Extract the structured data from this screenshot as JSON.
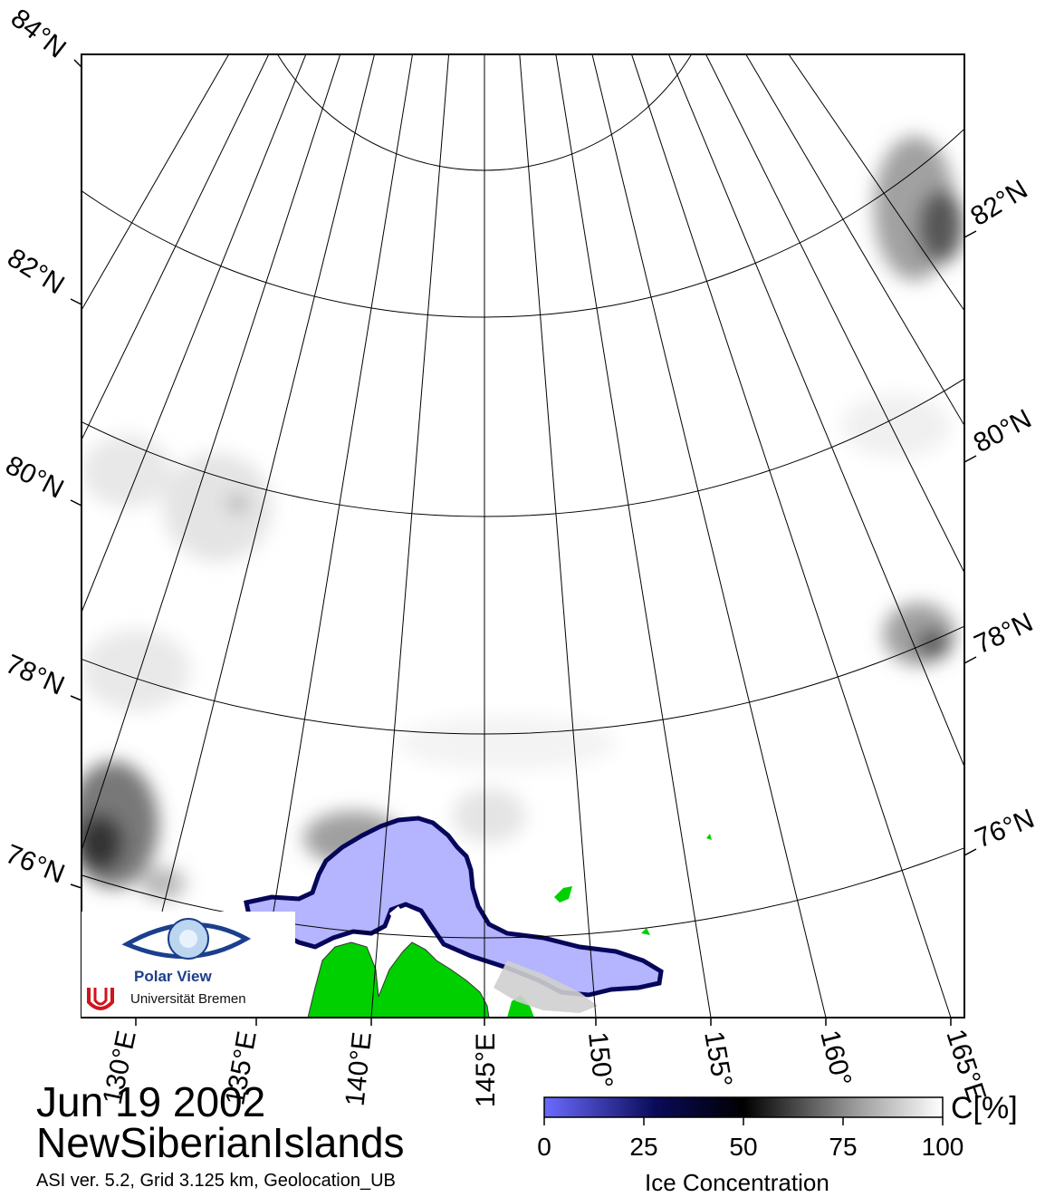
{
  "map": {
    "lat_labels_left": [
      "84°N",
      "82°N",
      "80°N",
      "78°N",
      "76°N"
    ],
    "lat_labels_right": [
      "82°N",
      "80°N",
      "78°N",
      "76°N"
    ],
    "lon_labels": [
      "130°E",
      "135°E",
      "140°E",
      "145°E",
      "150°",
      "155°",
      "160°",
      "165°E"
    ],
    "land_color": "#00d000",
    "fast_ice_color": "#b4b4ff",
    "frame_color": "#000000"
  },
  "logo": {
    "name": "Polar View",
    "institution": "Universität Bremen",
    "icon": "eye-icon",
    "badge_icon": "ub-logo-icon"
  },
  "date": "Jun 19 2002",
  "region": "NewSiberianIslands",
  "meta": "ASI ver. 5.2,  Grid 3.125 km, Geolocation_UB",
  "colorbar": {
    "title": "Ice Concentration",
    "unit": "C[%]",
    "ticks": [
      "0",
      "25",
      "50",
      "75",
      "100"
    ],
    "range": [
      0,
      100
    ],
    "colors": [
      "#6b6bff",
      "#0a0a5a",
      "#000000",
      "#9a9a9a",
      "#ffffff"
    ]
  }
}
